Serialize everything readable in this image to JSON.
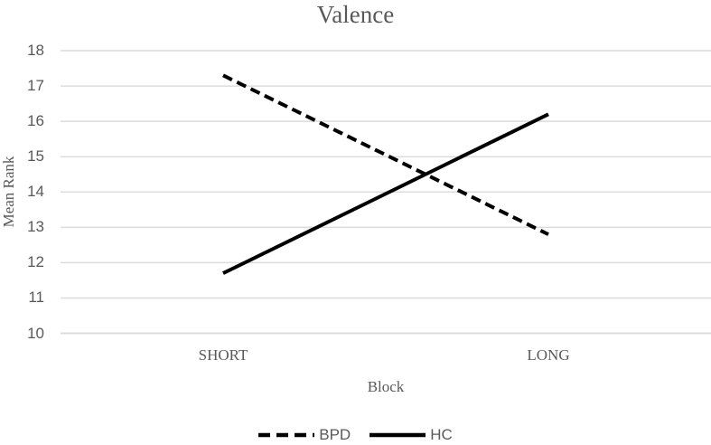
{
  "chart_data": {
    "type": "line",
    "title": "Valence",
    "xlabel": "Block",
    "ylabel": "Mean Rank",
    "categories": [
      "SHORT",
      "LONG"
    ],
    "series": [
      {
        "name": "BPD",
        "values": [
          17.3,
          12.8
        ],
        "line_style": "dashed"
      },
      {
        "name": "HC",
        "values": [
          11.7,
          16.2
        ],
        "line_style": "solid"
      }
    ],
    "ylim": [
      10,
      18
    ],
    "ytick_step": 1,
    "grid": true,
    "legend_position": "bottom",
    "line_color": "#000000",
    "gridline_color": "#dcdcdc",
    "text_color": "#595959"
  }
}
